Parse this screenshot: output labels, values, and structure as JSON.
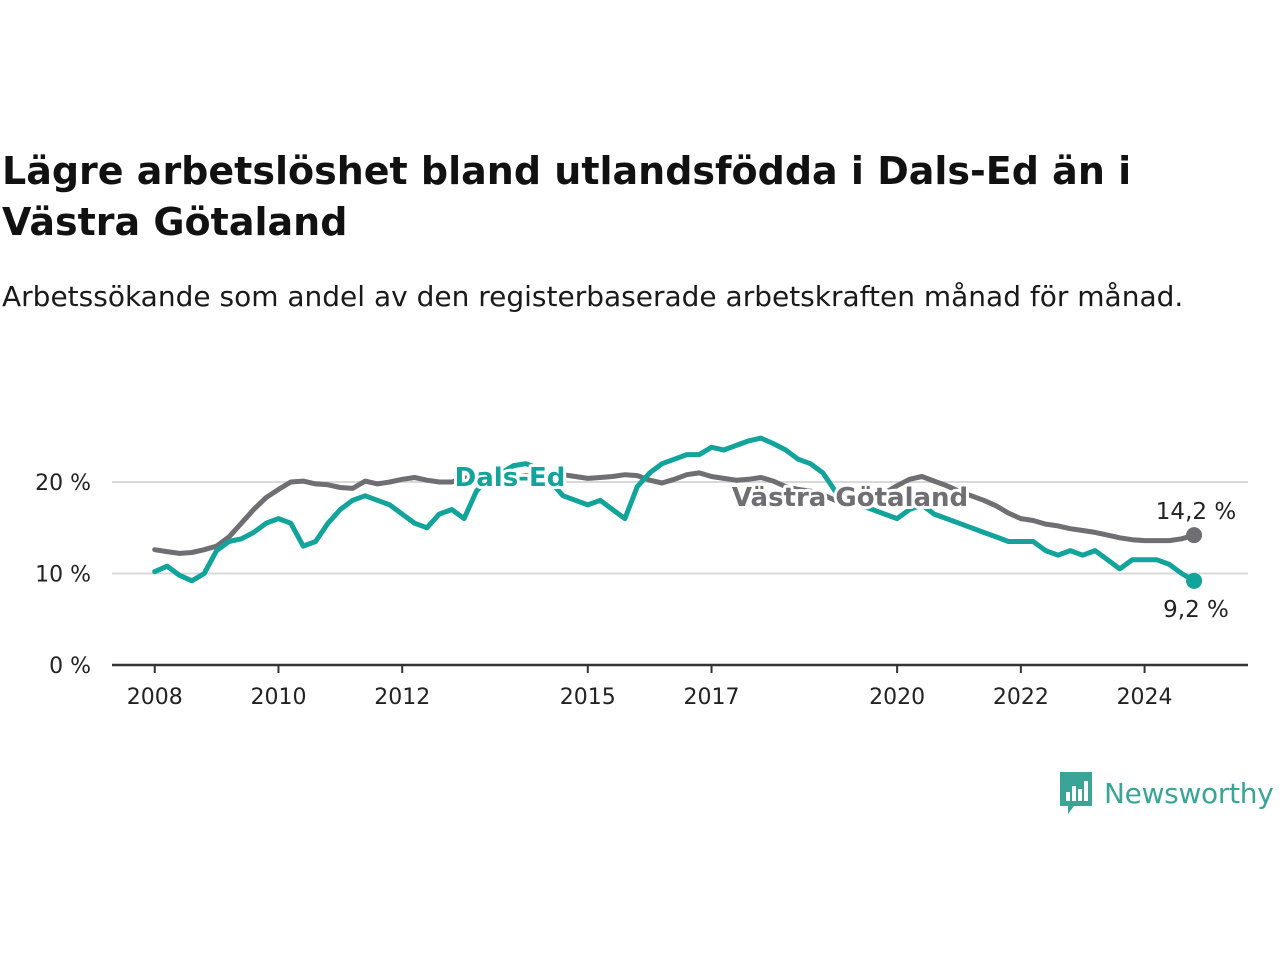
{
  "header": {
    "title": "Lägre arbetslöshet bland utlandsfödda i Dals-Ed än i Västra Götaland",
    "subtitle": "Arbetssökande som andel av den registerbaserade arbetskraften månad för månad."
  },
  "brand": {
    "name": "Newsworthy",
    "icon": "newsworthy-logo-icon",
    "color": "#3aa596"
  },
  "colors": {
    "dalsed": "#12a39a",
    "vastra": "#6e6e73",
    "grid": "#d9d9d9",
    "axis": "#333333"
  },
  "chart_data": {
    "type": "line",
    "ylim": [
      0,
      27
    ],
    "xlim": [
      2007.6,
      2025.3
    ],
    "y_ticks": [
      {
        "value": 0,
        "label": "0 %"
      },
      {
        "value": 10,
        "label": "10 %"
      },
      {
        "value": 20,
        "label": "20 %"
      }
    ],
    "x_ticks": [
      {
        "value": 2008,
        "label": "2008"
      },
      {
        "value": 2010,
        "label": "2010"
      },
      {
        "value": 2012,
        "label": "2012"
      },
      {
        "value": 2015,
        "label": "2015"
      },
      {
        "value": 2017,
        "label": "2017"
      },
      {
        "value": 2020,
        "label": "2020"
      },
      {
        "value": 2022,
        "label": "2022"
      },
      {
        "value": 2024,
        "label": "2024"
      }
    ],
    "grid": "horizontal",
    "series": [
      {
        "name": "Västra Götaland",
        "end_label": "14,2 %",
        "x": [
          2008.0,
          2008.2,
          2008.4,
          2008.6,
          2008.8,
          2009.0,
          2009.2,
          2009.4,
          2009.6,
          2009.8,
          2010.0,
          2010.2,
          2010.4,
          2010.6,
          2010.8,
          2011.0,
          2011.2,
          2011.4,
          2011.6,
          2011.8,
          2012.0,
          2012.2,
          2012.4,
          2012.6,
          2012.8,
          2013.0,
          2013.2,
          2013.4,
          2013.6,
          2013.8,
          2014.0,
          2014.2,
          2014.4,
          2014.6,
          2014.8,
          2015.0,
          2015.2,
          2015.4,
          2015.6,
          2015.8,
          2016.0,
          2016.2,
          2016.4,
          2016.6,
          2016.8,
          2017.0,
          2017.2,
          2017.4,
          2017.6,
          2017.8,
          2018.0,
          2018.2,
          2018.4,
          2018.6,
          2018.8,
          2019.0,
          2019.2,
          2019.4,
          2019.6,
          2019.8,
          2020.0,
          2020.2,
          2020.4,
          2020.6,
          2020.8,
          2021.0,
          2021.2,
          2021.4,
          2021.6,
          2021.8,
          2022.0,
          2022.2,
          2022.4,
          2022.6,
          2022.8,
          2023.0,
          2023.2,
          2023.4,
          2023.6,
          2023.8,
          2024.0,
          2024.2,
          2024.4,
          2024.6,
          2024.8
        ],
        "y": [
          12.6,
          12.4,
          12.2,
          12.3,
          12.6,
          13.0,
          14.0,
          15.5,
          17.0,
          18.3,
          19.2,
          20.0,
          20.1,
          19.8,
          19.7,
          19.4,
          19.3,
          20.1,
          19.8,
          20.0,
          20.3,
          20.5,
          20.2,
          20.0,
          20.0,
          20.4,
          20.6,
          20.3,
          20.3,
          20.5,
          20.7,
          20.6,
          20.8,
          20.8,
          20.6,
          20.4,
          20.5,
          20.6,
          20.8,
          20.7,
          20.2,
          19.9,
          20.3,
          20.8,
          21.0,
          20.6,
          20.4,
          20.2,
          20.3,
          20.5,
          20.1,
          19.5,
          19.2,
          19.0,
          18.6,
          18.0,
          17.8,
          17.6,
          18.0,
          18.8,
          19.6,
          20.3,
          20.6,
          20.1,
          19.6,
          19.0,
          18.5,
          18.0,
          17.4,
          16.6,
          16.0,
          15.8,
          15.4,
          15.2,
          14.9,
          14.7,
          14.5,
          14.2,
          13.9,
          13.7,
          13.6,
          13.6,
          13.6,
          13.8,
          14.2
        ]
      },
      {
        "name": "Dals-Ed",
        "end_label": "9,2 %",
        "x": [
          2008.0,
          2008.2,
          2008.4,
          2008.6,
          2008.8,
          2009.0,
          2009.2,
          2009.4,
          2009.6,
          2009.8,
          2010.0,
          2010.2,
          2010.4,
          2010.6,
          2010.8,
          2011.0,
          2011.2,
          2011.4,
          2011.6,
          2011.8,
          2012.0,
          2012.2,
          2012.4,
          2012.6,
          2012.8,
          2013.0,
          2013.2,
          2013.4,
          2013.6,
          2013.8,
          2014.0,
          2014.2,
          2014.4,
          2014.6,
          2014.8,
          2015.0,
          2015.2,
          2015.4,
          2015.6,
          2015.8,
          2016.0,
          2016.2,
          2016.4,
          2016.6,
          2016.8,
          2017.0,
          2017.2,
          2017.4,
          2017.6,
          2017.8,
          2018.0,
          2018.2,
          2018.4,
          2018.6,
          2018.8,
          2019.0,
          2019.2,
          2019.4,
          2019.6,
          2019.8,
          2020.0,
          2020.2,
          2020.4,
          2020.6,
          2020.8,
          2021.0,
          2021.2,
          2021.4,
          2021.6,
          2021.8,
          2022.0,
          2022.2,
          2022.4,
          2022.6,
          2022.8,
          2023.0,
          2023.2,
          2023.4,
          2023.6,
          2023.8,
          2024.0,
          2024.2,
          2024.4,
          2024.6,
          2024.8
        ],
        "y": [
          10.2,
          10.8,
          9.8,
          9.2,
          10.0,
          12.5,
          13.5,
          13.8,
          14.5,
          15.5,
          16.0,
          15.5,
          13.0,
          13.5,
          15.5,
          17.0,
          18.0,
          18.5,
          18.0,
          17.5,
          16.5,
          15.5,
          15.0,
          16.5,
          17.0,
          16.0,
          19.0,
          20.5,
          21.0,
          21.8,
          22.0,
          21.5,
          20.0,
          18.5,
          18.0,
          17.5,
          18.0,
          17.0,
          16.0,
          19.5,
          21.0,
          22.0,
          22.5,
          23.0,
          23.0,
          23.8,
          23.5,
          24.0,
          24.5,
          24.8,
          24.2,
          23.5,
          22.5,
          22.0,
          21.0,
          19.0,
          18.5,
          17.5,
          17.0,
          16.5,
          16.0,
          17.0,
          17.5,
          16.5,
          16.0,
          15.5,
          15.0,
          14.5,
          14.0,
          13.5,
          13.5,
          13.5,
          12.5,
          12.0,
          12.5,
          12.0,
          12.5,
          11.5,
          10.5,
          11.5,
          11.5,
          11.5,
          11.0,
          10.0,
          9.2
        ]
      }
    ]
  }
}
